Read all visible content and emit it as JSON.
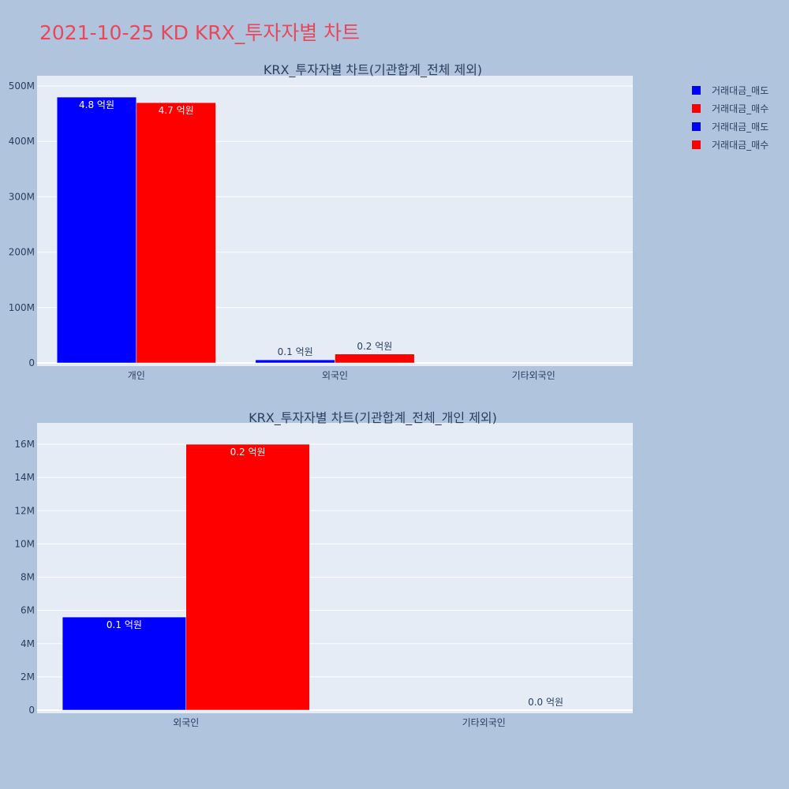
{
  "title": "2021-10-25 KD KRX_투자자별 차트",
  "colors": {
    "sell": "#0000ff",
    "buy": "#ff0000",
    "plot_bg": "#e5ecf6",
    "page_bg": "#b0c4de",
    "title": "#e8485a"
  },
  "legend": {
    "placement": "top-right",
    "items": [
      {
        "label": "거래대금_매도",
        "color": "#0000ff"
      },
      {
        "label": "거래대금_매수",
        "color": "#ff0000"
      },
      {
        "label": "거래대금_매도",
        "color": "#0000ff"
      },
      {
        "label": "거래대금_매수",
        "color": "#ff0000"
      }
    ]
  },
  "chart_data": [
    {
      "type": "bar",
      "title": "KRX_투자자별 차트(기관합계_전체 제외)",
      "categories": [
        "개인",
        "외국인",
        "기타외국인"
      ],
      "ylim": [
        0,
        510000000
      ],
      "yticks": [
        0,
        100000000,
        200000000,
        300000000,
        400000000,
        500000000
      ],
      "ytick_labels": [
        "0",
        "100M",
        "200M",
        "300M",
        "400M",
        "500M"
      ],
      "grid": true,
      "series": [
        {
          "name": "거래대금_매도",
          "color": "#0000ff",
          "values": [
            480000000,
            5600000,
            null
          ],
          "labels": [
            "4.8 억원",
            "0.1 억원",
            ""
          ]
        },
        {
          "name": "거래대금_매수",
          "color": "#ff0000",
          "values": [
            470000000,
            16000000,
            null
          ],
          "labels": [
            "4.7 억원",
            "0.2 억원",
            ""
          ]
        }
      ]
    },
    {
      "type": "bar",
      "title": "KRX_투자자별 차트(기관합계_전체_개인 제외)",
      "categories": [
        "외국인",
        "기타외국인"
      ],
      "ylim": [
        0,
        17000000
      ],
      "yticks": [
        0,
        2000000,
        4000000,
        6000000,
        8000000,
        10000000,
        12000000,
        14000000,
        16000000
      ],
      "ytick_labels": [
        "0",
        "2M",
        "4M",
        "6M",
        "8M",
        "10M",
        "12M",
        "14M",
        "16M"
      ],
      "grid": true,
      "series": [
        {
          "name": "거래대금_매도",
          "color": "#0000ff",
          "values": [
            5600000,
            null
          ],
          "labels": [
            "0.1 억원",
            ""
          ]
        },
        {
          "name": "거래대금_매수",
          "color": "#ff0000",
          "values": [
            16000000,
            0
          ],
          "labels": [
            "0.2 억원",
            "0.0 억원"
          ]
        }
      ]
    }
  ]
}
